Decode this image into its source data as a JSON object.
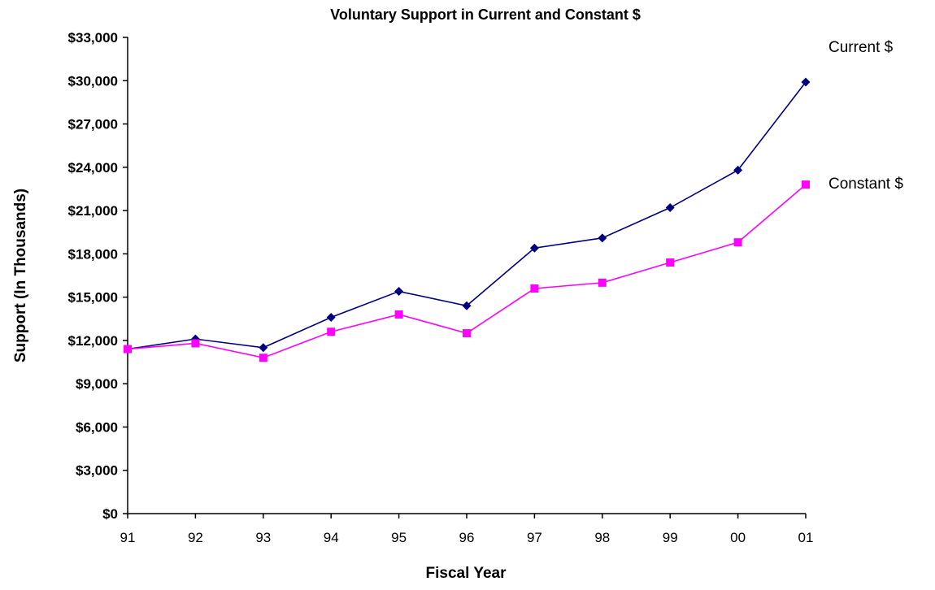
{
  "chart_data": {
    "type": "line",
    "title": "Voluntary Support in Current and Constant $",
    "xlabel": "Fiscal Year",
    "ylabel": "Support (In Thousands)",
    "categories": [
      "91",
      "92",
      "93",
      "94",
      "95",
      "96",
      "97",
      "98",
      "99",
      "00",
      "01"
    ],
    "ylim": [
      0,
      33000
    ],
    "yticks": [
      0,
      3000,
      6000,
      9000,
      12000,
      15000,
      18000,
      21000,
      24000,
      27000,
      30000,
      33000
    ],
    "ytick_labels": [
      "$0",
      "$3,000",
      "$6,000",
      "$9,000",
      "$12,000",
      "$15,000",
      "$18,000",
      "$21,000",
      "$24,000",
      "$27,000",
      "$30,000",
      "$33,000"
    ],
    "grid": false,
    "legend": "inline labels at right end of lines",
    "series": [
      {
        "name": "Current $",
        "color": "#000080",
        "marker": "diamond",
        "values": [
          11400,
          12100,
          11500,
          13600,
          15400,
          14400,
          18400,
          19100,
          21200,
          23800,
          29900
        ]
      },
      {
        "name": "Constant $",
        "color": "#FF00FF",
        "marker": "square",
        "values": [
          11400,
          11800,
          10800,
          12600,
          13800,
          12500,
          15600,
          16000,
          17400,
          18800,
          22800
        ]
      }
    ]
  }
}
